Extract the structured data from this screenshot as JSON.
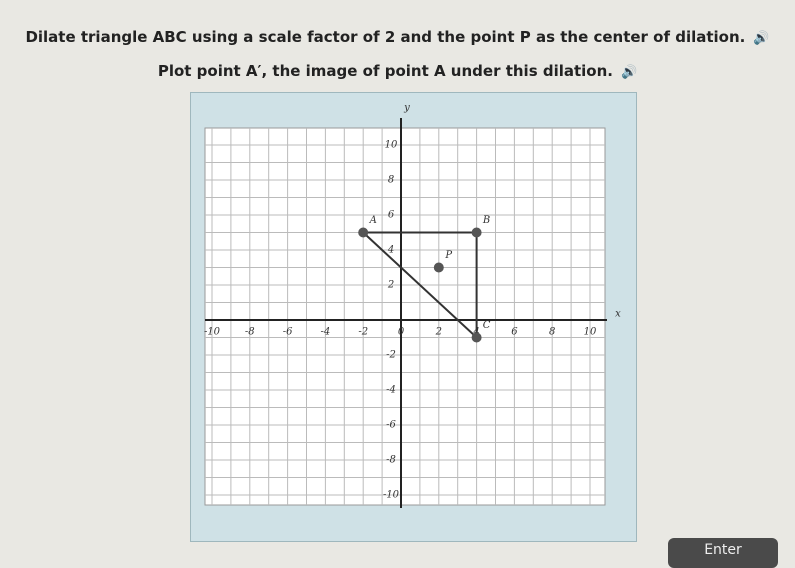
{
  "prompt": {
    "line1": "Dilate triangle ABC using a scale factor of 2 and the point P as the center of dilation.",
    "line2": "Plot point A′, the image of point A under this dilation."
  },
  "graph": {
    "x_label": "x",
    "y_label": "y",
    "xlim": [
      -10,
      10
    ],
    "ylim": [
      -10,
      10
    ],
    "xticks": [
      -10,
      -8,
      -6,
      -4,
      -2,
      0,
      2,
      4,
      6,
      8,
      10
    ],
    "yticks": [
      -10,
      -8,
      -6,
      -4,
      -2,
      0,
      2,
      4,
      6,
      8,
      10
    ],
    "points": [
      {
        "label": "A",
        "x": -2,
        "y": 5
      },
      {
        "label": "B",
        "x": 4,
        "y": 5
      },
      {
        "label": "C",
        "x": 4,
        "y": -1
      },
      {
        "label": "P",
        "x": 2,
        "y": 3
      }
    ]
  },
  "button": {
    "label": "Enter"
  }
}
